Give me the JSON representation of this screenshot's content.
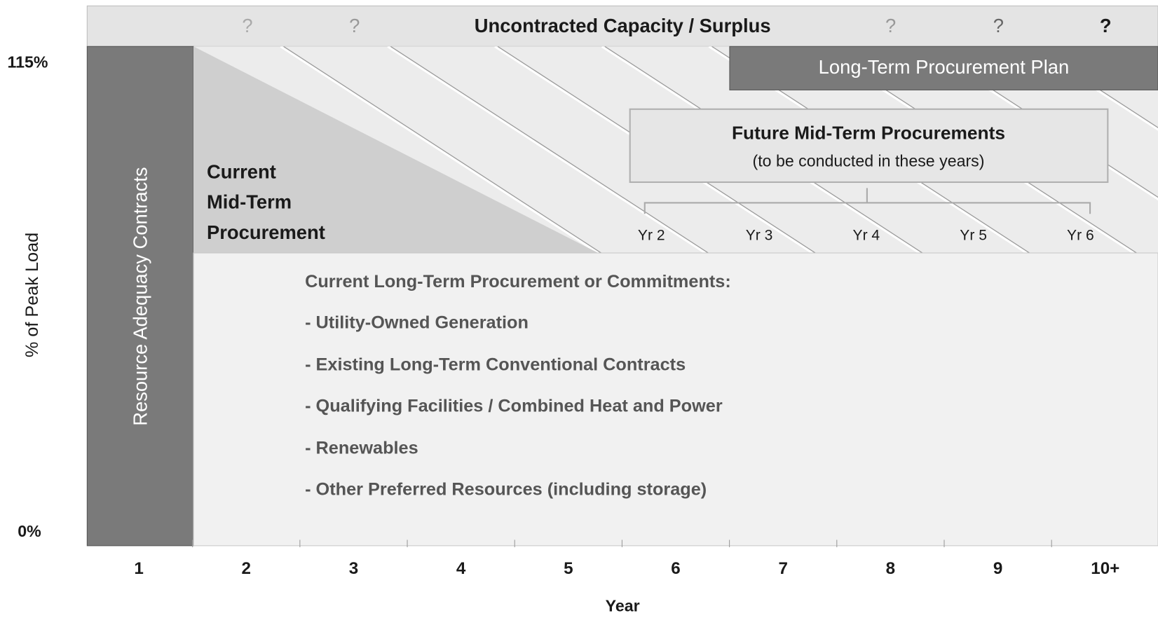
{
  "header": {
    "title": "Uncontracted Capacity / Surplus",
    "marks": [
      "?",
      "?",
      "?",
      "?",
      "?"
    ]
  },
  "left_bar": "Resource Adequacy Contracts",
  "current_mid_term": [
    "Current",
    "Mid-Term",
    "Procurement"
  ],
  "long_term_plan": "Long-Term Procurement Plan",
  "future_mid_term": {
    "title": "Future Mid-Term Procurements",
    "subtitle": "(to be conducted in these years)",
    "years": [
      "Yr 2",
      "Yr 3",
      "Yr 4",
      "Yr 5",
      "Yr 6"
    ]
  },
  "commitments": {
    "title": "Current Long-Term Procurement or Commitments:",
    "items": [
      "- Utility-Owned Generation",
      "- Existing Long-Term Conventional Contracts",
      "- Qualifying Facilities / Combined Heat and Power",
      "- Renewables",
      "- Other Preferred Resources (including storage)"
    ]
  },
  "y_axis": {
    "label": "% of Peak Load",
    "ticks": [
      "115%",
      "0%"
    ]
  },
  "x_axis": {
    "label": "Year",
    "ticks": [
      "1",
      "2",
      "3",
      "4",
      "5",
      "6",
      "7",
      "8",
      "9",
      "10+"
    ]
  }
}
